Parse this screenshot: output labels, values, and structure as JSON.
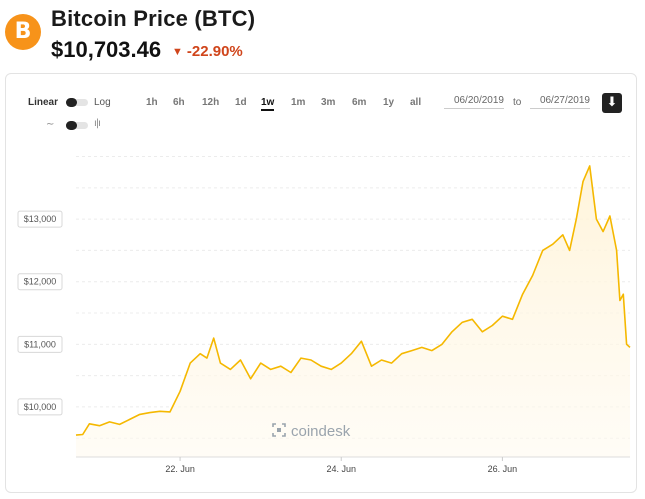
{
  "header": {
    "logo_symbol": "B",
    "title": "Bitcoin Price (BTC)",
    "price": "$10,703.46",
    "change": "-22.90%",
    "change_arrow": "▼",
    "colors": {
      "brand": "#f7931a",
      "negative": "#d0451b"
    }
  },
  "toolbar": {
    "scale": {
      "linear_label": "Linear",
      "log_label": "Log"
    },
    "chart_type_icons": [
      "line-chart-icon",
      "candlestick-icon"
    ],
    "ranges": [
      "1h",
      "6h",
      "12h",
      "1d",
      "1w",
      "1m",
      "3m",
      "6m",
      "1y",
      "all"
    ],
    "active_range": "1w",
    "date_from": "06/20/2019",
    "to_label": "to",
    "date_to": "06/27/2019",
    "download_icon": "download-icon"
  },
  "watermark": "coindesk",
  "chart_data": {
    "type": "area",
    "title": "",
    "xlabel": "",
    "ylabel": "",
    "x_ticks": [
      "22. Jun",
      "24. Jun",
      "26. Jun"
    ],
    "y_ticks": [
      {
        "value": 10000,
        "label": "$10,000"
      },
      {
        "value": 11000,
        "label": "$11,000"
      },
      {
        "value": 12000,
        "label": "$12,000"
      },
      {
        "value": 13000,
        "label": "$13,000"
      }
    ],
    "xlim": [
      "2019-06-20T17:00",
      "2019-06-27T14:00"
    ],
    "ylim": [
      9200,
      14200
    ],
    "grid": true,
    "color": "#f5b800",
    "series": [
      {
        "x": [
          "2019-06-20T17:00",
          "2019-06-20T19:00",
          "2019-06-20T21:00",
          "2019-06-21T00:00",
          "2019-06-21T03:00",
          "2019-06-21T06:00",
          "2019-06-21T09:00",
          "2019-06-21T12:00",
          "2019-06-21T15:00",
          "2019-06-21T18:00",
          "2019-06-21T21:00",
          "2019-06-22T00:00",
          "2019-06-22T03:00",
          "2019-06-22T06:00",
          "2019-06-22T08:00",
          "2019-06-22T10:00",
          "2019-06-22T12:00",
          "2019-06-22T15:00",
          "2019-06-22T18:00",
          "2019-06-22T21:00",
          "2019-06-23T00:00",
          "2019-06-23T03:00",
          "2019-06-23T06:00",
          "2019-06-23T09:00",
          "2019-06-23T12:00",
          "2019-06-23T15:00",
          "2019-06-23T18:00",
          "2019-06-23T21:00",
          "2019-06-24T00:00",
          "2019-06-24T03:00",
          "2019-06-24T06:00",
          "2019-06-24T09:00",
          "2019-06-24T12:00",
          "2019-06-24T15:00",
          "2019-06-24T18:00",
          "2019-06-24T21:00",
          "2019-06-25T00:00",
          "2019-06-25T03:00",
          "2019-06-25T06:00",
          "2019-06-25T09:00",
          "2019-06-25T12:00",
          "2019-06-25T15:00",
          "2019-06-25T18:00",
          "2019-06-25T21:00",
          "2019-06-26T00:00",
          "2019-06-26T03:00",
          "2019-06-26T06:00",
          "2019-06-26T09:00",
          "2019-06-26T12:00",
          "2019-06-26T15:00",
          "2019-06-26T18:00",
          "2019-06-26T20:00",
          "2019-06-26T22:00",
          "2019-06-27T00:00",
          "2019-06-27T02:00",
          "2019-06-27T04:00",
          "2019-06-27T06:00",
          "2019-06-27T08:00",
          "2019-06-27T10:00",
          "2019-06-27T11:00",
          "2019-06-27T12:00",
          "2019-06-27T13:00",
          "2019-06-27T14:00"
        ],
        "y": [
          9550,
          9560,
          9730,
          9700,
          9760,
          9720,
          9800,
          9880,
          9910,
          9930,
          9920,
          10250,
          10700,
          10850,
          10780,
          11100,
          10700,
          10600,
          10750,
          10450,
          10700,
          10600,
          10650,
          10550,
          10780,
          10750,
          10650,
          10600,
          10700,
          10850,
          11050,
          10650,
          10750,
          10700,
          10850,
          10900,
          10950,
          10900,
          11000,
          11200,
          11350,
          11400,
          11200,
          11300,
          11450,
          11400,
          11800,
          12100,
          12500,
          12600,
          12750,
          12500,
          13000,
          13600,
          13850,
          13000,
          12800,
          13050,
          12500,
          11700,
          11800,
          11000,
          10950
        ]
      }
    ]
  }
}
